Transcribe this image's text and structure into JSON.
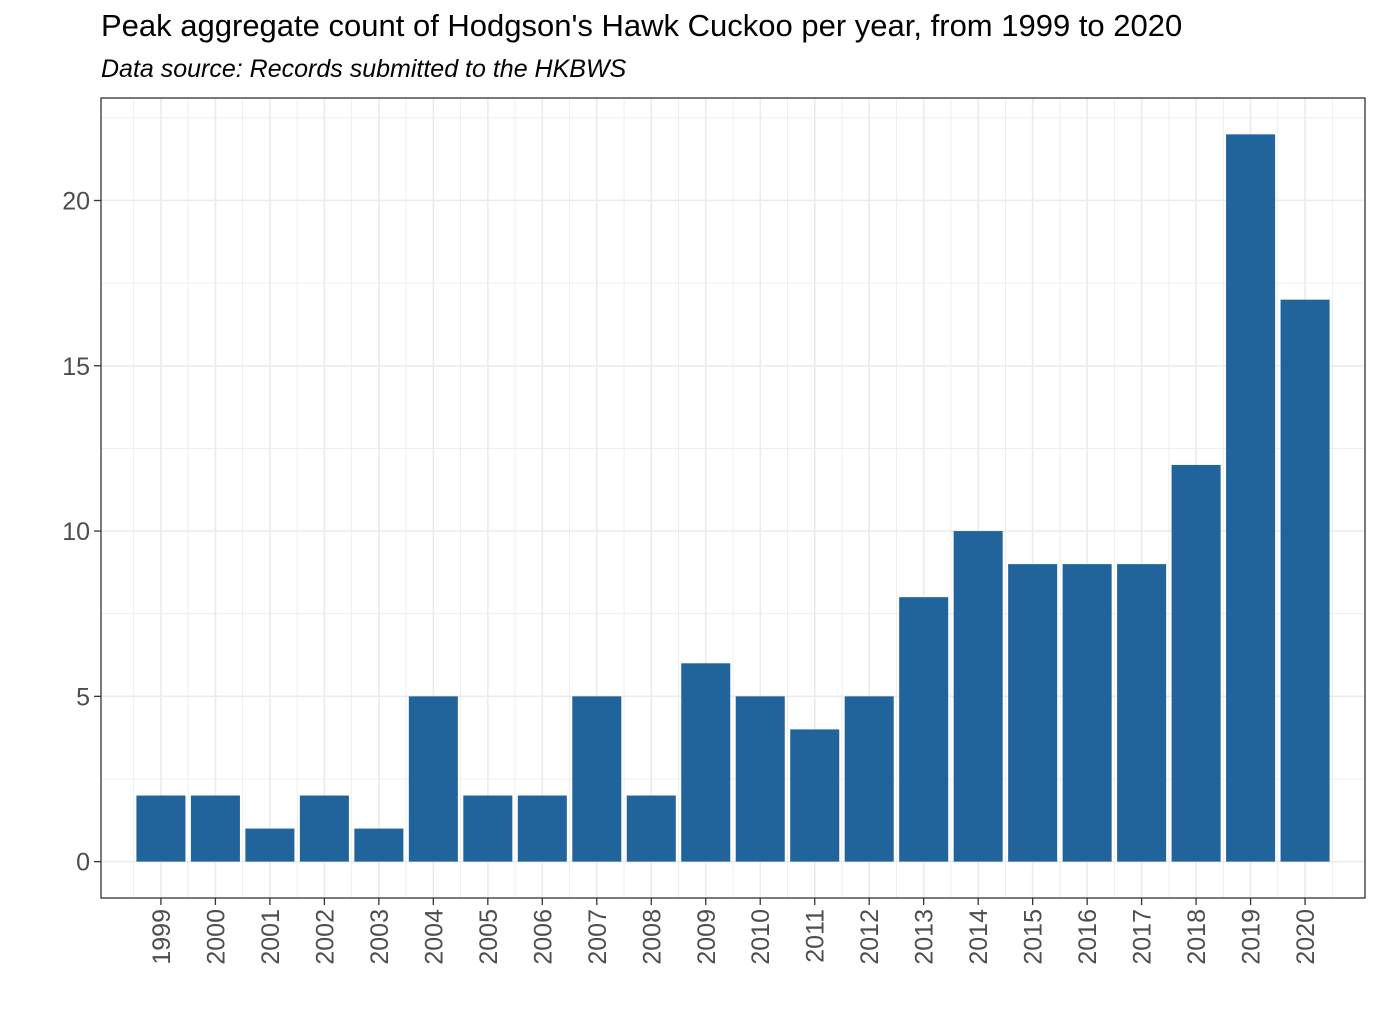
{
  "chart_data": {
    "type": "bar",
    "title": "Peak aggregate count of Hodgson's Hawk Cuckoo per year, from 1999 to 2020",
    "subtitle": "Data source: Records submitted to the HKBWS",
    "xlabel": "",
    "ylabel": "",
    "categories": [
      "1999",
      "2000",
      "2001",
      "2002",
      "2003",
      "2004",
      "2005",
      "2006",
      "2007",
      "2008",
      "2009",
      "2010",
      "2011",
      "2012",
      "2013",
      "2014",
      "2015",
      "2016",
      "2017",
      "2018",
      "2019",
      "2020"
    ],
    "values": [
      2,
      2,
      1,
      2,
      1,
      5,
      2,
      2,
      5,
      2,
      6,
      5,
      4,
      5,
      8,
      10,
      9,
      9,
      9,
      12,
      22,
      17
    ],
    "yticks": [
      0,
      5,
      10,
      15,
      20
    ],
    "ylim": [
      -1.1,
      23.1
    ],
    "grid": true,
    "legend": "none",
    "bar_color": "#21649b",
    "grid_color": "#ebebeb",
    "panel_border_color": "#333333",
    "tick_label_color": "#4d4d4d"
  }
}
